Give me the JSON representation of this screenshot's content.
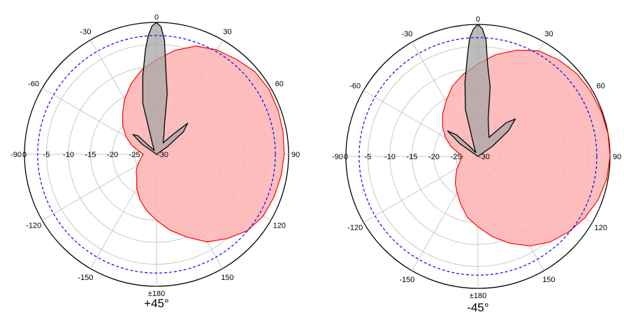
{
  "chart_data": [
    {
      "type": "polar",
      "title": "+45°",
      "angle_labels": [
        "0",
        "30",
        "60",
        "90",
        "120",
        "150",
        "±180",
        "-150",
        "-120",
        "-90",
        "-60",
        "-30"
      ],
      "angle_values": [
        0,
        30,
        60,
        90,
        120,
        150,
        180,
        -150,
        -120,
        -90,
        -60,
        -30
      ],
      "radial_labels": [
        "0",
        "-5",
        "-10",
        "-15",
        "-20",
        "-25",
        "-30"
      ],
      "radial_values": [
        0,
        -5,
        -10,
        -15,
        -20,
        -25,
        -30
      ],
      "rlim": [
        -30,
        0
      ],
      "reference_circle_db": -3,
      "colors": {
        "grid": "#c8c8c8",
        "copolar": "#ff0000",
        "copolar_fill": "#ffb3b3",
        "cross": "#000000",
        "cross_fill": "#a6a6a6",
        "reference": "#0000ff"
      },
      "series": [
        {
          "style": "copolar",
          "theta": [
            -180,
            -170,
            -160,
            -150,
            -140,
            -130,
            -120,
            -110,
            -100,
            -90,
            -80,
            -70,
            -60,
            -50,
            -40,
            -30,
            -20,
            -10,
            0,
            10,
            20,
            30,
            40,
            50,
            60,
            70,
            80,
            90,
            100,
            110,
            120,
            130,
            140,
            150,
            160,
            170
          ],
          "r": [
            -15,
            -17,
            -19,
            -21,
            -23,
            -24,
            -25,
            -26,
            -26.5,
            -27,
            -26,
            -24,
            -22,
            -20,
            -18,
            -15.5,
            -13,
            -10.5,
            -8.5,
            -6,
            -3.8,
            -2.6,
            -1.8,
            -0.8,
            -0.5,
            -0.6,
            -0.8,
            -1,
            -1.3,
            -1.6,
            -2,
            -3,
            -5,
            -7,
            -10,
            -12.5
          ]
        },
        {
          "style": "cross",
          "theta": [
            -60,
            -55,
            -50,
            -45,
            -40,
            -30,
            -20,
            -15,
            -10,
            -6,
            -4,
            -2,
            0,
            2,
            4,
            6,
            10,
            15,
            20,
            30,
            40,
            45,
            50,
            55,
            60
          ],
          "r": [
            -30,
            -26,
            -23,
            -24,
            -28,
            -29,
            -27,
            -18,
            -12,
            -6,
            -3,
            -0.8,
            0,
            -1,
            -4,
            -10,
            -16,
            -23,
            -25,
            -27,
            -24,
            -20,
            -22,
            -27,
            -30
          ]
        }
      ]
    },
    {
      "type": "polar",
      "title": "-45°",
      "angle_labels": [
        "0",
        "30",
        "60",
        "90",
        "120",
        "150",
        "±180",
        "-150",
        "-120",
        "-90",
        "-60",
        "-30"
      ],
      "angle_values": [
        0,
        30,
        60,
        90,
        120,
        150,
        180,
        -150,
        -120,
        -90,
        -60,
        -30
      ],
      "radial_labels": [
        "0",
        "-5",
        "-10",
        "-15",
        "-20",
        "-25",
        "-30"
      ],
      "radial_values": [
        0,
        -5,
        -10,
        -15,
        -20,
        -25,
        -30
      ],
      "rlim": [
        -30,
        0
      ],
      "reference_circle_db": -3,
      "colors": {
        "grid": "#c8c8c8",
        "copolar": "#ff0000",
        "copolar_fill": "#ffb3b3",
        "cross": "#000000",
        "cross_fill": "#a6a6a6",
        "reference": "#0000ff"
      },
      "series": [
        {
          "style": "copolar",
          "theta": [
            -180,
            -170,
            -160,
            -150,
            -140,
            -130,
            -120,
            -110,
            -100,
            -90,
            -80,
            -70,
            -60,
            -50,
            -40,
            -30,
            -20,
            -10,
            0,
            10,
            20,
            30,
            40,
            50,
            60,
            70,
            80,
            90,
            100,
            110,
            120,
            130,
            140,
            150,
            160,
            170
          ],
          "r": [
            -14,
            -16,
            -18.5,
            -20.5,
            -22,
            -23.5,
            -24.5,
            -25.5,
            -26,
            -26.5,
            -25.5,
            -23.5,
            -21.5,
            -19.5,
            -17.5,
            -15.5,
            -13,
            -11,
            -9,
            -6.5,
            -4.3,
            -2.3,
            -1.4,
            -0.7,
            -0.4,
            -0.2,
            0,
            0,
            -0.3,
            -1,
            -2,
            -3.2,
            -4.6,
            -6.5,
            -9,
            -11.5
          ]
        },
        {
          "style": "cross",
          "theta": [
            -60,
            -55,
            -50,
            -45,
            -40,
            -30,
            -20,
            -15,
            -10,
            -6,
            -4,
            -2,
            0,
            2,
            4,
            6,
            10,
            15,
            20,
            30,
            40,
            45,
            50,
            55,
            60
          ],
          "r": [
            -30,
            -25,
            -21,
            -23,
            -27,
            -29,
            -27,
            -19,
            -13,
            -7,
            -3,
            -1,
            0,
            -1,
            -3.5,
            -9,
            -14,
            -21,
            -23,
            -25,
            -20,
            -18,
            -21,
            -26,
            -30
          ]
        }
      ]
    }
  ]
}
